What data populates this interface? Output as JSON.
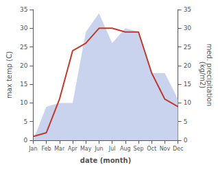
{
  "chart_data": {
    "type": "line",
    "categories": [
      "Jan",
      "Feb",
      "Mar",
      "Apr",
      "May",
      "Jun",
      "Jul",
      "Aug",
      "Sep",
      "Oct",
      "Nov",
      "Dec"
    ],
    "series": [
      {
        "type": "area",
        "color": "#b8c4e8",
        "axis": "y2",
        "values": [
          0,
          9,
          10,
          10,
          29,
          34,
          26,
          30,
          29,
          18,
          18,
          11
        ]
      },
      {
        "type": "line",
        "color": "#c0392b",
        "values": [
          1,
          2,
          11,
          24,
          26,
          30,
          30,
          29,
          29,
          18,
          11,
          9
        ]
      }
    ],
    "xlabel": "date (month)",
    "ylabel": "max temp (C)",
    "y2label": "med. precipitation\n(kg/m2)",
    "ylim": [
      0,
      35
    ],
    "yticks": [
      0,
      5,
      10,
      15,
      20,
      25,
      30,
      35
    ],
    "y2lim": [
      0,
      35
    ],
    "y2ticks": [
      0,
      5,
      10,
      15,
      20,
      25,
      30,
      35
    ],
    "grid": false
  }
}
